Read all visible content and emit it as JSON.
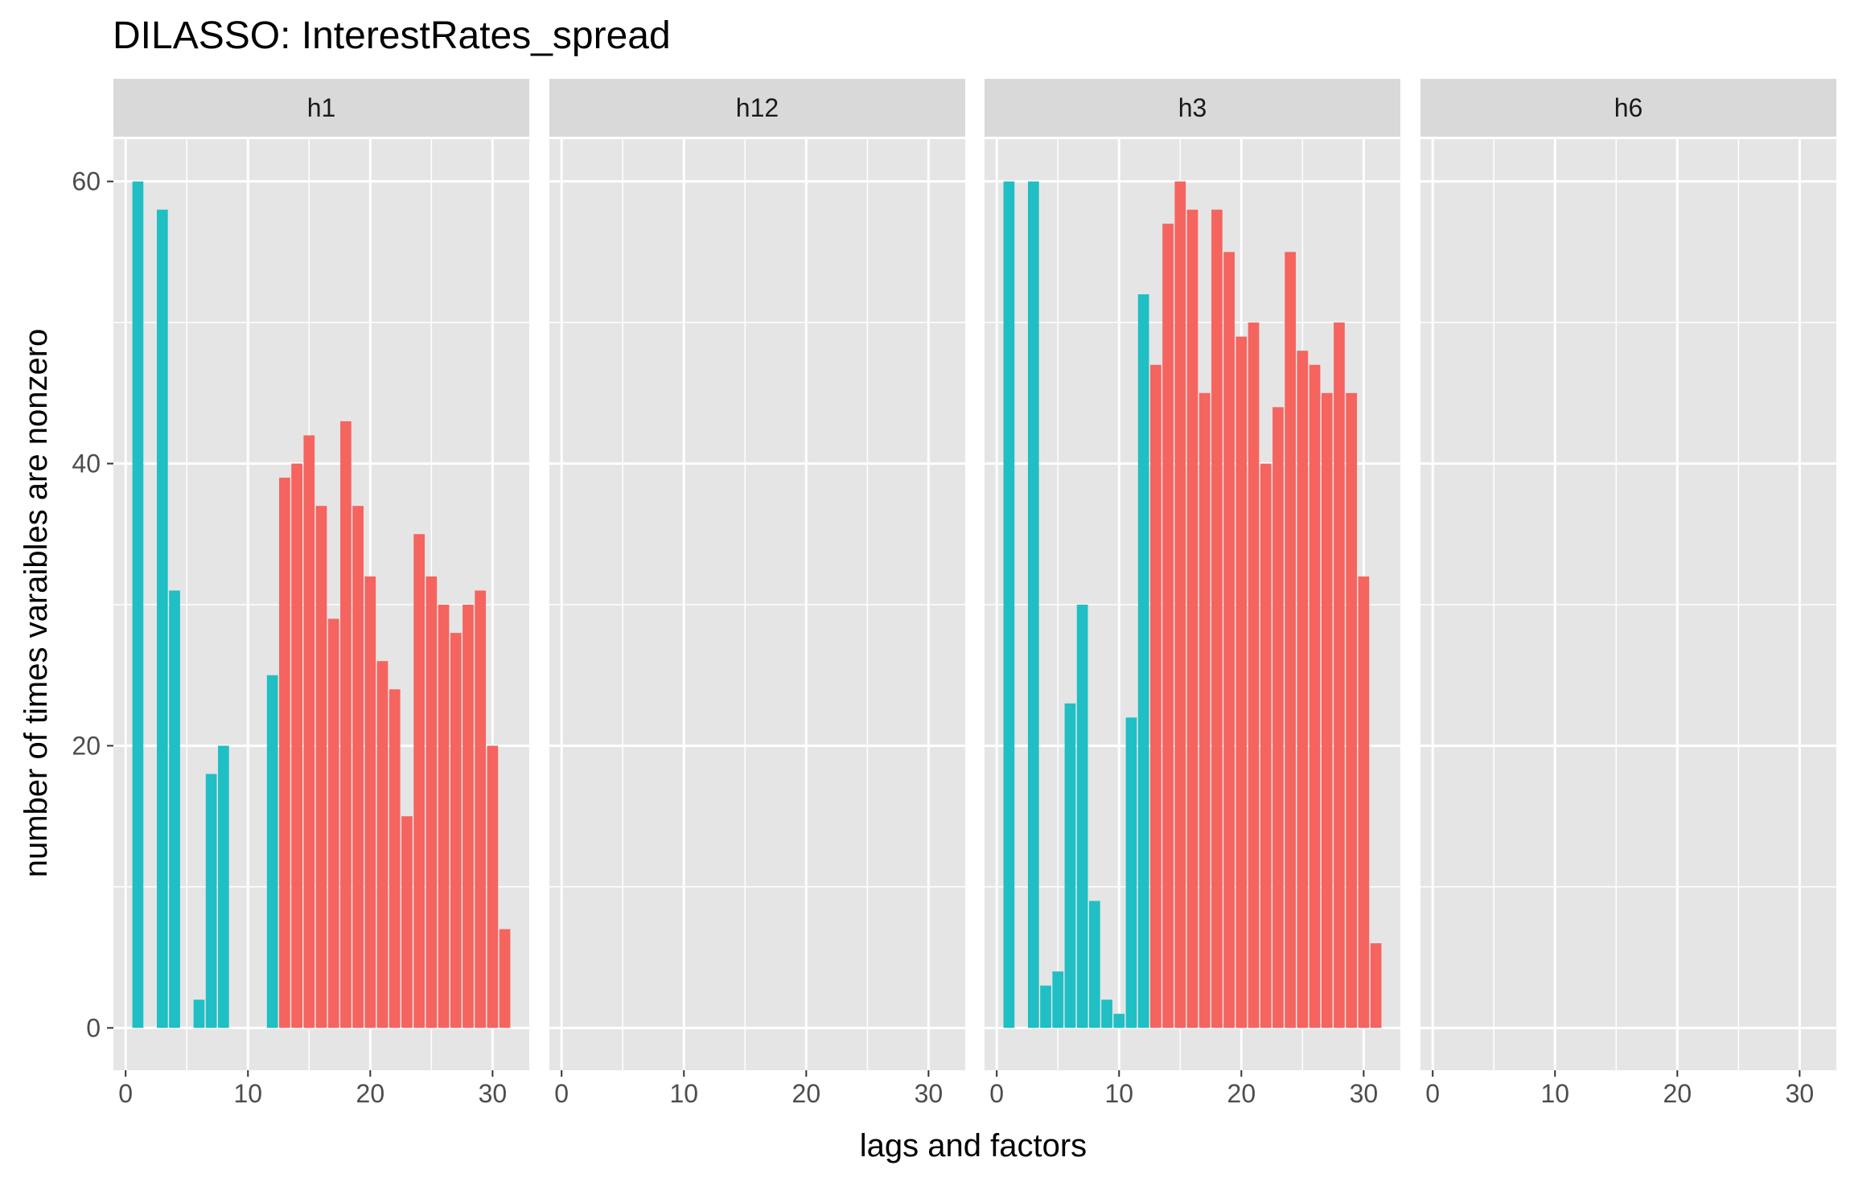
{
  "chart_data": {
    "type": "bar",
    "title": "DILASSO: InterestRates_spread",
    "xlabel": "lags and factors",
    "ylabel": "number of times varaibles are nonzero",
    "xlim": [
      -1,
      33
    ],
    "ylim": [
      -3,
      63
    ],
    "x_ticks": [
      0,
      10,
      20,
      30
    ],
    "y_ticks": [
      0,
      20,
      40,
      60
    ],
    "grid": true,
    "legend": "none",
    "colors": {
      "lag": "#1FBFC4",
      "factor": "#F5645E",
      "panel_bg": "#E5E5E5",
      "strip_bg": "#D9D9D9",
      "grid": "#FFFFFF"
    },
    "facets": [
      {
        "label": "h1",
        "bars": [
          {
            "x": 1,
            "y": 60,
            "group": "lag"
          },
          {
            "x": 3,
            "y": 58,
            "group": "lag"
          },
          {
            "x": 4,
            "y": 31,
            "group": "lag"
          },
          {
            "x": 6,
            "y": 2,
            "group": "lag"
          },
          {
            "x": 7,
            "y": 18,
            "group": "lag"
          },
          {
            "x": 8,
            "y": 20,
            "group": "lag"
          },
          {
            "x": 12,
            "y": 25,
            "group": "lag"
          },
          {
            "x": 13,
            "y": 39,
            "group": "factor"
          },
          {
            "x": 14,
            "y": 40,
            "group": "factor"
          },
          {
            "x": 15,
            "y": 42,
            "group": "factor"
          },
          {
            "x": 16,
            "y": 37,
            "group": "factor"
          },
          {
            "x": 17,
            "y": 29,
            "group": "factor"
          },
          {
            "x": 18,
            "y": 43,
            "group": "factor"
          },
          {
            "x": 19,
            "y": 37,
            "group": "factor"
          },
          {
            "x": 20,
            "y": 32,
            "group": "factor"
          },
          {
            "x": 21,
            "y": 26,
            "group": "factor"
          },
          {
            "x": 22,
            "y": 24,
            "group": "factor"
          },
          {
            "x": 23,
            "y": 15,
            "group": "factor"
          },
          {
            "x": 24,
            "y": 35,
            "group": "factor"
          },
          {
            "x": 25,
            "y": 32,
            "group": "factor"
          },
          {
            "x": 26,
            "y": 30,
            "group": "factor"
          },
          {
            "x": 27,
            "y": 28,
            "group": "factor"
          },
          {
            "x": 28,
            "y": 30,
            "group": "factor"
          },
          {
            "x": 29,
            "y": 31,
            "group": "factor"
          },
          {
            "x": 30,
            "y": 20,
            "group": "factor"
          },
          {
            "x": 31,
            "y": 7,
            "group": "factor"
          }
        ]
      },
      {
        "label": "h12",
        "bars": []
      },
      {
        "label": "h3",
        "bars": [
          {
            "x": 1,
            "y": 60,
            "group": "lag"
          },
          {
            "x": 3,
            "y": 60,
            "group": "lag"
          },
          {
            "x": 4,
            "y": 3,
            "group": "lag"
          },
          {
            "x": 5,
            "y": 4,
            "group": "lag"
          },
          {
            "x": 6,
            "y": 23,
            "group": "lag"
          },
          {
            "x": 7,
            "y": 30,
            "group": "lag"
          },
          {
            "x": 8,
            "y": 9,
            "group": "lag"
          },
          {
            "x": 9,
            "y": 2,
            "group": "lag"
          },
          {
            "x": 10,
            "y": 1,
            "group": "lag"
          },
          {
            "x": 11,
            "y": 22,
            "group": "lag"
          },
          {
            "x": 12,
            "y": 52,
            "group": "lag"
          },
          {
            "x": 13,
            "y": 47,
            "group": "factor"
          },
          {
            "x": 14,
            "y": 57,
            "group": "factor"
          },
          {
            "x": 15,
            "y": 60,
            "group": "factor"
          },
          {
            "x": 16,
            "y": 58,
            "group": "factor"
          },
          {
            "x": 17,
            "y": 45,
            "group": "factor"
          },
          {
            "x": 18,
            "y": 58,
            "group": "factor"
          },
          {
            "x": 19,
            "y": 55,
            "group": "factor"
          },
          {
            "x": 20,
            "y": 49,
            "group": "factor"
          },
          {
            "x": 21,
            "y": 50,
            "group": "factor"
          },
          {
            "x": 22,
            "y": 40,
            "group": "factor"
          },
          {
            "x": 23,
            "y": 44,
            "group": "factor"
          },
          {
            "x": 24,
            "y": 55,
            "group": "factor"
          },
          {
            "x": 25,
            "y": 48,
            "group": "factor"
          },
          {
            "x": 26,
            "y": 47,
            "group": "factor"
          },
          {
            "x": 27,
            "y": 45,
            "group": "factor"
          },
          {
            "x": 28,
            "y": 50,
            "group": "factor"
          },
          {
            "x": 29,
            "y": 45,
            "group": "factor"
          },
          {
            "x": 30,
            "y": 32,
            "group": "factor"
          },
          {
            "x": 31,
            "y": 6,
            "group": "factor"
          }
        ]
      },
      {
        "label": "h6",
        "bars": []
      }
    ]
  }
}
